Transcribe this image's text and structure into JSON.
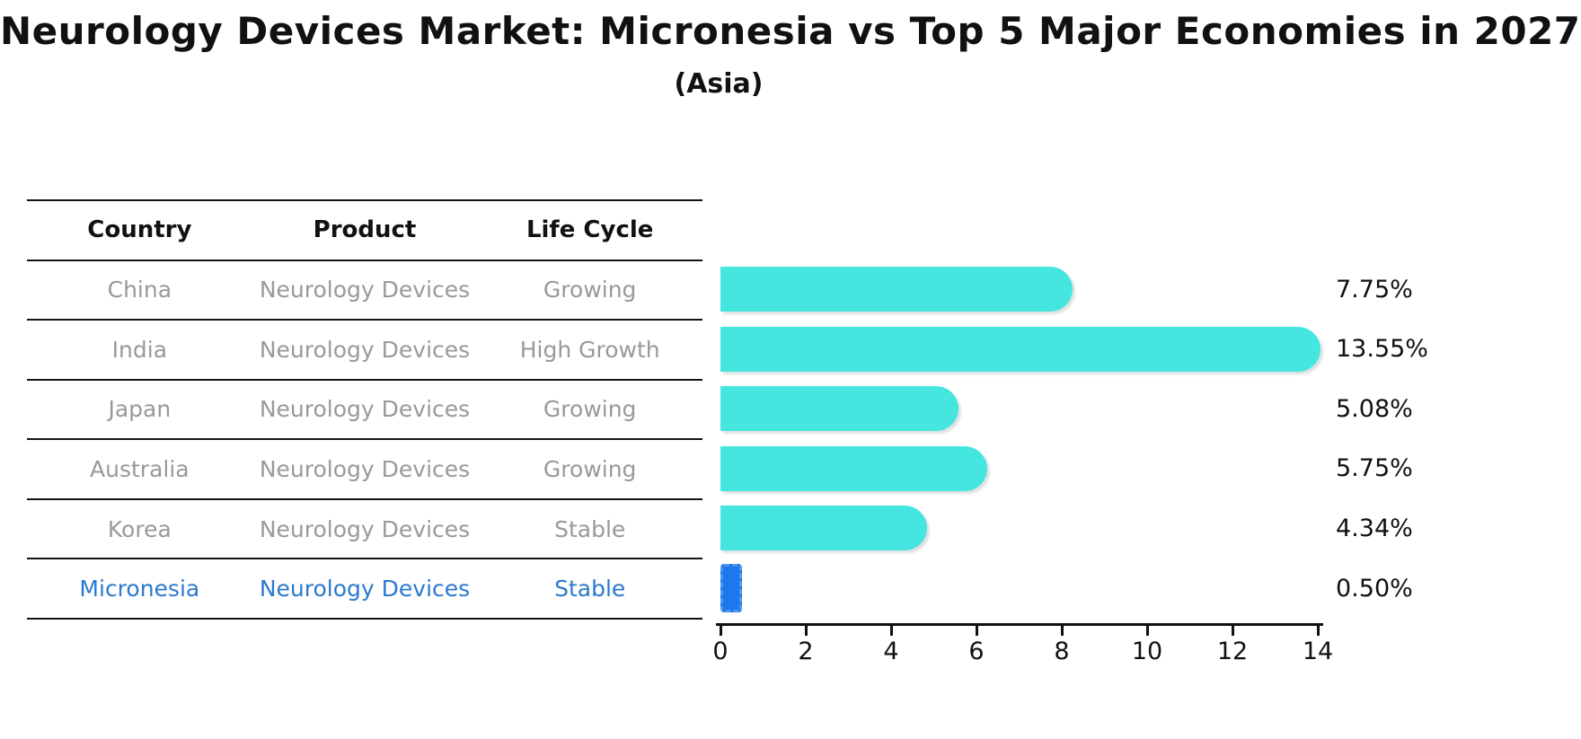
{
  "title": "Neurology Devices Market: Micronesia vs Top 5 Major Economies in 2027",
  "subtitle": "(Asia)",
  "table": {
    "headers": [
      "Country",
      "Product",
      "Life Cycle"
    ],
    "rows": [
      {
        "country": "China",
        "product": "Neurology Devices",
        "life_cycle": "Growing",
        "highlight": false
      },
      {
        "country": "India",
        "product": "Neurology Devices",
        "life_cycle": "High Growth",
        "highlight": false
      },
      {
        "country": "Japan",
        "product": "Neurology Devices",
        "life_cycle": "Growing",
        "highlight": false
      },
      {
        "country": "Australia",
        "product": "Neurology Devices",
        "life_cycle": "Growing",
        "highlight": false
      },
      {
        "country": "Korea",
        "product": "Neurology Devices",
        "life_cycle": "Stable",
        "highlight": false
      },
      {
        "country": "Micronesia",
        "product": "Neurology Devices",
        "life_cycle": "Stable",
        "highlight": true
      }
    ]
  },
  "chart_data": {
    "type": "bar",
    "orientation": "horizontal",
    "title": "Neurology Devices Market: Micronesia vs Top 5 Major Economies in 2027",
    "subtitle": "(Asia)",
    "categories": [
      "China",
      "India",
      "Japan",
      "Australia",
      "Korea",
      "Micronesia"
    ],
    "values": [
      7.75,
      13.55,
      5.08,
      5.75,
      4.34,
      0.5
    ],
    "value_labels": [
      "7.75%",
      "13.55%",
      "5.08%",
      "5.75%",
      "4.34%",
      "0.50%"
    ],
    "xlim": [
      0,
      14
    ],
    "x_ticks": [
      0,
      2,
      4,
      6,
      8,
      10,
      12,
      14
    ],
    "grid": false,
    "legend": false,
    "highlight_index": 5,
    "colors": {
      "bar": "#45E6E0",
      "highlight_bar": "#1E78EB",
      "highlight_bar_border": "#4E97F0",
      "highlight_text": "#2C79D0",
      "table_text": "#999999",
      "header_text": "#111111",
      "axis": "#111111"
    }
  }
}
